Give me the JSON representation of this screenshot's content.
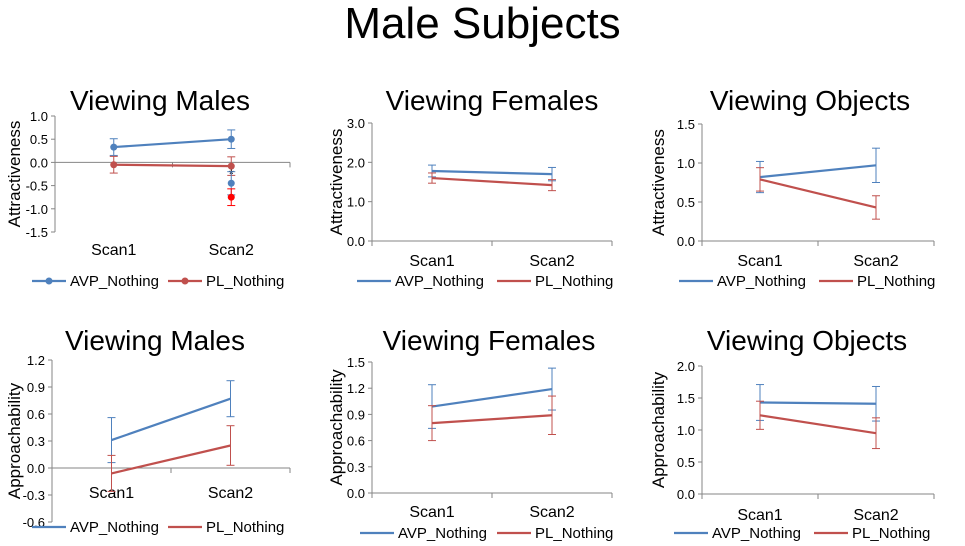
{
  "main_title": "Male Subjects",
  "chart_data": [
    {
      "type": "line",
      "title": "Viewing Males",
      "ylabel": "Attractiveness",
      "categories": [
        "Scan1",
        "Scan2"
      ],
      "ylim": [
        -1.5,
        1.0
      ],
      "yticks": [
        "1.0",
        "0.5",
        "0.0",
        "-0.5",
        "-1.0",
        "-1.5"
      ],
      "markers": true,
      "series": [
        {
          "name": "AVP_Nothing",
          "color": "#4f81bd",
          "values": [
            0.33,
            0.5
          ],
          "errors": [
            0.18,
            0.2
          ]
        },
        {
          "name": "PL_Nothing",
          "color": "#c0504d",
          "values": [
            -0.05,
            -0.08
          ],
          "errors": [
            0.18,
            0.2
          ]
        }
      ],
      "annotations": [
        {
          "text": "*",
          "x": "Scan2",
          "y": -0.22
        },
        {
          "text": "",
          "x": "Scan2",
          "y": -0.45,
          "color": "#4f81bd",
          "error": 0.25
        },
        {
          "text": "",
          "x": "Scan2",
          "y": -0.75,
          "color": "#ff0000",
          "error": 0.18
        }
      ]
    },
    {
      "type": "line",
      "title": "Viewing Females",
      "ylabel": "Attractiveness",
      "categories": [
        "Scan1",
        "Scan2"
      ],
      "ylim": [
        0.0,
        3.0
      ],
      "yticks": [
        "3.0",
        "2.0",
        "1.0",
        "0.0"
      ],
      "markers": false,
      "series": [
        {
          "name": "AVP_Nothing",
          "color": "#4f81bd",
          "values": [
            1.78,
            1.7
          ],
          "errors": [
            0.15,
            0.17
          ]
        },
        {
          "name": "PL_Nothing",
          "color": "#c0504d",
          "values": [
            1.6,
            1.42
          ],
          "errors": [
            0.13,
            0.14
          ]
        }
      ]
    },
    {
      "type": "line",
      "title": "Viewing Objects",
      "ylabel": "Attractiveness",
      "categories": [
        "Scan1",
        "Scan2"
      ],
      "ylim": [
        0.0,
        1.5
      ],
      "yticks": [
        "1.5",
        "1.0",
        "0.5",
        "0.0"
      ],
      "markers": false,
      "series": [
        {
          "name": "AVP_Nothing",
          "color": "#4f81bd",
          "values": [
            0.82,
            0.97
          ],
          "errors": [
            0.2,
            0.22
          ]
        },
        {
          "name": "PL_Nothing",
          "color": "#c0504d",
          "values": [
            0.79,
            0.43
          ],
          "errors": [
            0.15,
            0.15
          ]
        }
      ]
    },
    {
      "type": "line",
      "title": "Viewing Males",
      "ylabel": "Approachability",
      "categories": [
        "Scan1",
        "Scan2"
      ],
      "ylim": [
        -0.6,
        1.2
      ],
      "yticks": [
        "1.2",
        "0.9",
        "0.6",
        "0.3",
        "0.0",
        "-0.3",
        "-0.6"
      ],
      "markers": false,
      "series": [
        {
          "name": "AVP_Nothing",
          "color": "#4f81bd",
          "values": [
            0.31,
            0.77
          ],
          "errors": [
            0.25,
            0.2
          ]
        },
        {
          "name": "PL_Nothing",
          "color": "#c0504d",
          "values": [
            -0.06,
            0.25
          ],
          "errors": [
            0.2,
            0.22
          ]
        }
      ]
    },
    {
      "type": "line",
      "title": "Viewing Females",
      "ylabel": "Approachability",
      "categories": [
        "Scan1",
        "Scan2"
      ],
      "ylim": [
        0.0,
        1.5
      ],
      "yticks": [
        "1.5",
        "1.2",
        "0.9",
        "0.6",
        "0.3",
        "0.0"
      ],
      "markers": false,
      "series": [
        {
          "name": "AVP_Nothing",
          "color": "#4f81bd",
          "values": [
            0.99,
            1.19
          ],
          "errors": [
            0.25,
            0.24
          ]
        },
        {
          "name": "PL_Nothing",
          "color": "#c0504d",
          "values": [
            0.8,
            0.89
          ],
          "errors": [
            0.2,
            0.22
          ]
        }
      ]
    },
    {
      "type": "line",
      "title": "Viewing Objects",
      "ylabel": "Approachability",
      "categories": [
        "Scan1",
        "Scan2"
      ],
      "ylim": [
        0.0,
        2.0
      ],
      "yticks": [
        "2.0",
        "1.5",
        "1.0",
        "0.5",
        "0.0"
      ],
      "markers": false,
      "series": [
        {
          "name": "AVP_Nothing",
          "color": "#4f81bd",
          "values": [
            1.43,
            1.41
          ],
          "errors": [
            0.28,
            0.27
          ]
        },
        {
          "name": "PL_Nothing",
          "color": "#c0504d",
          "values": [
            1.23,
            0.95
          ],
          "errors": [
            0.22,
            0.24
          ]
        }
      ]
    }
  ]
}
